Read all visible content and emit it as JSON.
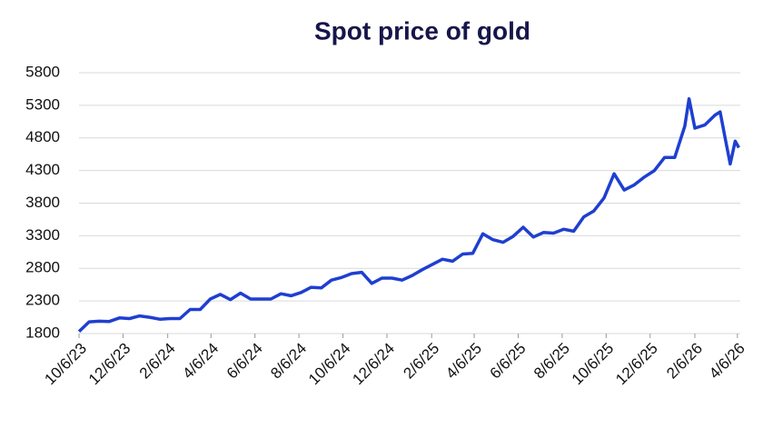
{
  "chart_data": {
    "type": "line",
    "title": "Spot price of gold",
    "x": [
      "2023-10-06",
      "2023-10-20",
      "2023-11-03",
      "2023-11-17",
      "2023-12-01",
      "2023-12-15",
      "2023-12-29",
      "2024-01-12",
      "2024-01-26",
      "2024-02-09",
      "2024-02-23",
      "2024-03-08",
      "2024-03-22",
      "2024-04-05",
      "2024-04-19",
      "2024-05-03",
      "2024-05-17",
      "2024-05-31",
      "2024-06-14",
      "2024-06-28",
      "2024-07-12",
      "2024-07-26",
      "2024-08-09",
      "2024-08-23",
      "2024-09-06",
      "2024-09-20",
      "2024-10-04",
      "2024-10-18",
      "2024-11-01",
      "2024-11-15",
      "2024-11-29",
      "2024-12-13",
      "2024-12-27",
      "2025-01-10",
      "2025-01-24",
      "2025-02-07",
      "2025-02-21",
      "2025-03-07",
      "2025-03-21",
      "2025-04-04",
      "2025-04-18",
      "2025-05-02",
      "2025-05-16",
      "2025-05-30",
      "2025-06-13",
      "2025-06-27",
      "2025-07-11",
      "2025-07-25",
      "2025-08-08",
      "2025-08-22",
      "2025-09-05",
      "2025-09-19",
      "2025-10-03",
      "2025-10-17",
      "2025-10-31",
      "2025-11-14",
      "2025-11-28",
      "2025-12-12",
      "2025-12-26",
      "2026-01-09",
      "2026-01-23",
      "2026-01-29",
      "2026-02-06",
      "2026-02-20",
      "2026-03-06",
      "2026-03-13",
      "2026-03-20",
      "2026-03-27",
      "2026-04-03",
      "2026-04-08"
    ],
    "series": [
      {
        "name": "Spot price of gold",
        "color": "#1f3fd0",
        "values": [
          1830,
          1980,
          1990,
          1985,
          2040,
          2030,
          2070,
          2050,
          2020,
          2030,
          2030,
          2170,
          2170,
          2330,
          2400,
          2320,
          2420,
          2330,
          2330,
          2330,
          2410,
          2380,
          2430,
          2510,
          2500,
          2620,
          2660,
          2720,
          2740,
          2570,
          2650,
          2650,
          2620,
          2690,
          2780,
          2860,
          2940,
          2910,
          3020,
          3030,
          3330,
          3240,
          3200,
          3290,
          3430,
          3280,
          3350,
          3340,
          3400,
          3370,
          3590,
          3680,
          3880,
          4250,
          4000,
          4080,
          4200,
          4300,
          4500,
          4500,
          4980,
          5400,
          4950,
          5000,
          5150,
          5200,
          4800,
          4400,
          4750,
          4650
        ]
      }
    ],
    "xlim": [
      "2023-10-06",
      "2026-04-10"
    ],
    "xticks": [
      {
        "value": "2023-10-06",
        "label": "10/6/23"
      },
      {
        "value": "2023-12-06",
        "label": "12/6/23"
      },
      {
        "value": "2024-02-06",
        "label": "2/6/24"
      },
      {
        "value": "2024-04-06",
        "label": "4/6/24"
      },
      {
        "value": "2024-06-06",
        "label": "6/6/24"
      },
      {
        "value": "2024-08-06",
        "label": "8/6/24"
      },
      {
        "value": "2024-10-06",
        "label": "10/6/24"
      },
      {
        "value": "2024-12-06",
        "label": "12/6/24"
      },
      {
        "value": "2025-02-06",
        "label": "2/6/25"
      },
      {
        "value": "2025-04-06",
        "label": "4/6/25"
      },
      {
        "value": "2025-06-06",
        "label": "6/6/25"
      },
      {
        "value": "2025-08-06",
        "label": "8/6/25"
      },
      {
        "value": "2025-10-06",
        "label": "10/6/25"
      },
      {
        "value": "2025-12-06",
        "label": "12/6/25"
      },
      {
        "value": "2026-02-06",
        "label": "2/6/26"
      },
      {
        "value": "2026-04-06",
        "label": "4/6/26"
      }
    ],
    "ylim": [
      1800,
      5800
    ],
    "yticks": [
      1800,
      2300,
      2800,
      3300,
      3800,
      4300,
      4800,
      5300,
      5800
    ],
    "grid": true
  }
}
